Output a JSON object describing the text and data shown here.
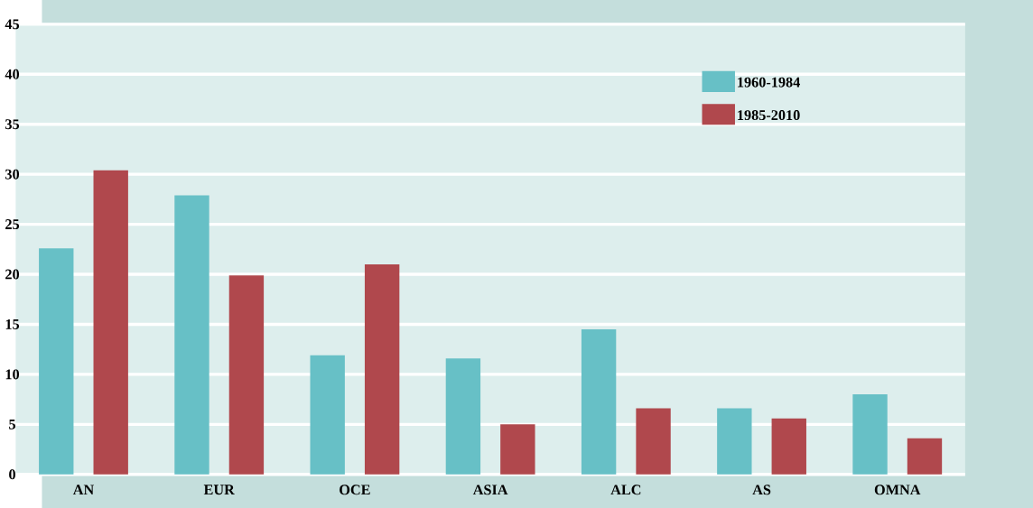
{
  "chart_data": {
    "type": "bar",
    "categories": [
      "AN",
      "EUR",
      "OCE",
      "ASIA",
      "ALC",
      "AS",
      "OMNA"
    ],
    "series": [
      {
        "name": "1960-1984",
        "color": "#67c0c6",
        "values": [
          22.6,
          27.9,
          11.9,
          11.6,
          14.5,
          6.6,
          8.0
        ]
      },
      {
        "name": "1985-2010",
        "color": "#b0484d",
        "values": [
          30.4,
          19.9,
          21.0,
          5.0,
          6.6,
          5.6,
          3.6
        ]
      }
    ],
    "ylim": [
      0,
      45
    ],
    "yticks": [
      0,
      5,
      10,
      15,
      20,
      25,
      30,
      35,
      40,
      45
    ],
    "grid": "y",
    "legend": "top right"
  }
}
